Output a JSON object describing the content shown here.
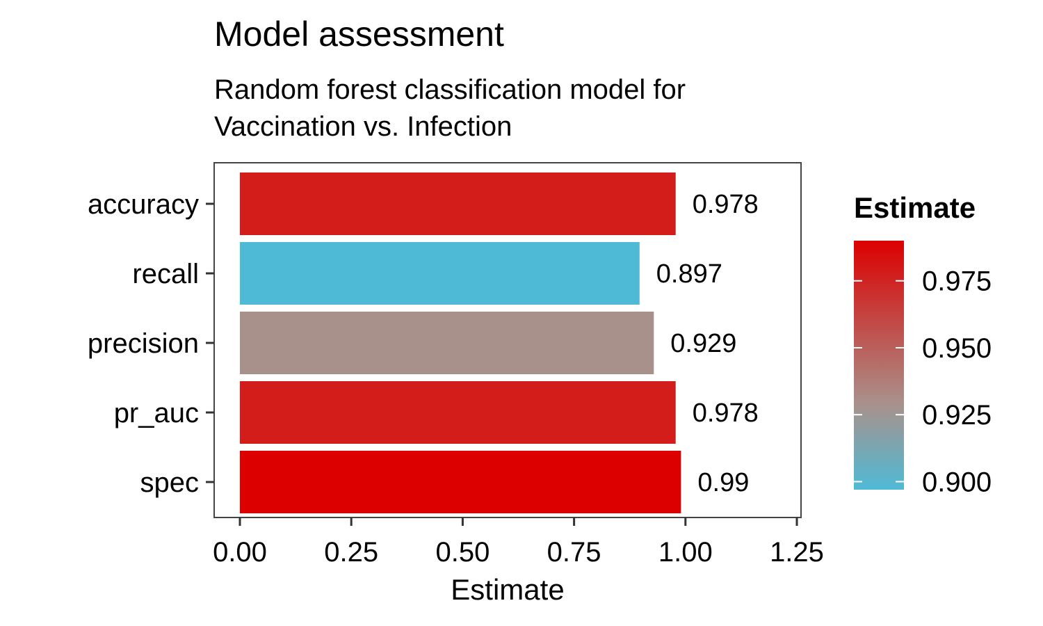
{
  "chart_data": {
    "type": "bar",
    "orientation": "horizontal",
    "title": "Model assessment",
    "subtitle_lines": [
      "Random forest classification model for",
      "Vaccination vs. Infection"
    ],
    "xlabel": "Estimate",
    "ylabel": "",
    "xlim": [
      0,
      1.25
    ],
    "x_ticks": [
      "0.00",
      "0.25",
      "0.50",
      "0.75",
      "1.00",
      "1.25"
    ],
    "categories": [
      "accuracy",
      "recall",
      "precision",
      "pr_auc",
      "spec"
    ],
    "values": [
      0.978,
      0.897,
      0.929,
      0.978,
      0.99
    ],
    "value_labels": [
      "0.978",
      "0.897",
      "0.929",
      "0.978",
      "0.99"
    ],
    "grid": false,
    "legend": {
      "title": "Estimate",
      "position": "right",
      "type": "colorbar",
      "ticks": [
        "0.975",
        "0.950",
        "0.925",
        "0.900"
      ],
      "range": [
        0.897,
        0.99
      ],
      "color_low": "#4fbad6",
      "color_mid": "#aa908a",
      "color_high": "#dc0000"
    }
  }
}
